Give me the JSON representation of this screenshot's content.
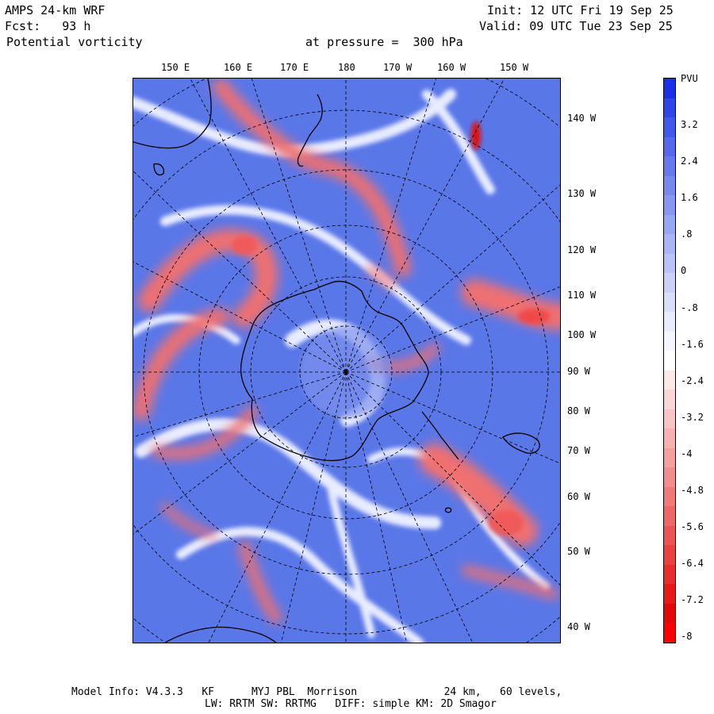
{
  "header": {
    "model_title": "AMPS 24-km WRF",
    "forecast": "Fcst:   93 h",
    "field": "Potential vorticity",
    "level": "at pressure =  300 hPa",
    "init": "Init: 12 UTC Fri 19 Sep 25",
    "valid": "Valid: 09 UTC Tue 23 Sep 25"
  },
  "top_longitudes": [
    "150 E",
    "160 E",
    "170 E",
    "180",
    "170 W",
    "160 W",
    "150 W"
  ],
  "right_longitudes": [
    "140 W",
    "130 W",
    "120 W",
    "110 W",
    "100 W",
    "90 W",
    "80 W",
    "70 W",
    "60 W",
    "50 W",
    "40 W"
  ],
  "colorbar": {
    "unit": "PVU",
    "labels": [
      "3.2",
      "2.4",
      "1.6",
      ".8",
      "0",
      "-.8",
      "-1.6",
      "-2.4",
      "-3.2",
      "-4",
      "-4.8",
      "-5.6",
      "-6.4",
      "-7.2",
      "-8"
    ],
    "colors": [
      "#1a2fe8",
      "#2e45ea",
      "#4158ec",
      "#5568ee",
      "#6679ef",
      "#7788f0",
      "#8898f2",
      "#98a7f4",
      "#a9b5f6",
      "#b9c3f8",
      "#c9d1fa",
      "#d9defc",
      "#e8ecfd",
      "#f4f5fe",
      "#ffffff",
      "#fde8e8",
      "#fbd6d6",
      "#f9c4c4",
      "#f7b1b1",
      "#f59f9f",
      "#f38c8c",
      "#f17979",
      "#ef6666",
      "#ed5353",
      "#eb4040",
      "#e92d2d",
      "#e71a1a",
      "#e50707",
      "#ff0000"
    ]
  },
  "footer": {
    "line1": "Model Info: V4.3.3   KF      MYJ PBL  Morrison              24 km,   60 levels,",
    "line2": "LW: RRTM SW: RRTMG   DIFF: simple KM: 2D Smagor"
  }
}
